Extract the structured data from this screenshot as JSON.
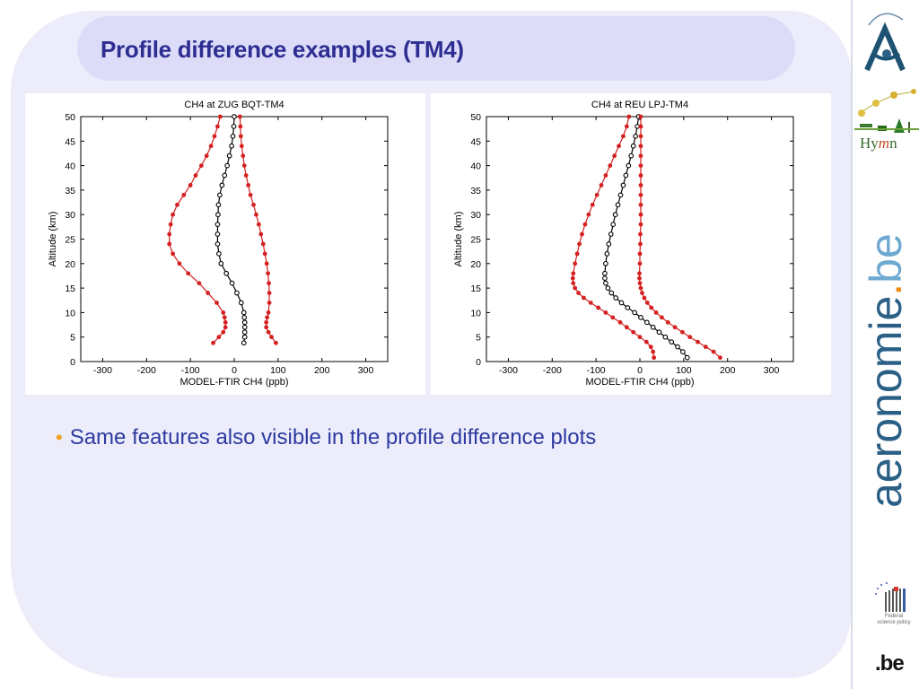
{
  "slide": {
    "title": "Profile difference examples (TM4)",
    "bullet": "Same features also visible in the profile difference plots"
  },
  "sidebar": {
    "brand_main": "aeronomie",
    "brand_dot": ".",
    "brand_tld": "be",
    "hymn_left": "Hy",
    "hymn_m": "m",
    "hymn_right": "n",
    "belspo_caption_1": "Federal",
    "belspo_caption_2": "science policy",
    "be_logo": ".be",
    "icons": [
      "bira-a-logo",
      "hymn-logo",
      "belspo-logo",
      "be-logo"
    ]
  },
  "colors": {
    "panel": "#ececfb",
    "title_bar": "#dcdcf8",
    "title_text": "#2d2d92",
    "bullet_text": "#2d3aa0",
    "bullet_dot": "#f0a020",
    "series_bounds": "#d42020",
    "series_center": "#000000"
  },
  "chart_data": [
    {
      "type": "line",
      "title": "CH4 at ZUG BQT-TM4",
      "xlabel": "MODEL-FTIR CH4 (ppb)",
      "ylabel": "Altitude (km)",
      "xlim": [
        -350,
        350
      ],
      "ylim": [
        0,
        50
      ],
      "xticks": [
        -300,
        -200,
        -100,
        0,
        100,
        200,
        300
      ],
      "yticks": [
        0,
        5,
        10,
        15,
        20,
        25,
        30,
        35,
        40,
        45,
        50
      ],
      "grid": false,
      "y": [
        3.8,
        5,
        6,
        7,
        8,
        9,
        10,
        12,
        14,
        16,
        18,
        20,
        22,
        24,
        26,
        28,
        30,
        32,
        34,
        36,
        38,
        40,
        42,
        44,
        46,
        48,
        50
      ],
      "series": [
        {
          "marker": "filled-dot",
          "color": "#d42020",
          "x": [
            -48,
            -35,
            -25,
            -20,
            -20,
            -22,
            -25,
            -40,
            -60,
            -80,
            -105,
            -125,
            -140,
            -148,
            -148,
            -145,
            -140,
            -130,
            -115,
            -100,
            -88,
            -75,
            -63,
            -53,
            -45,
            -38,
            -32
          ]
        },
        {
          "marker": "open-circle",
          "color": "#000000",
          "x": [
            22,
            24,
            24,
            24,
            24,
            23,
            22,
            16,
            6,
            -5,
            -18,
            -30,
            -35,
            -38,
            -38,
            -38,
            -37,
            -36,
            -33,
            -28,
            -22,
            -16,
            -11,
            -6,
            -3,
            -1,
            0
          ]
        },
        {
          "marker": "filled-dot",
          "color": "#d42020",
          "x": [
            95,
            85,
            78,
            73,
            73,
            75,
            78,
            80,
            80,
            79,
            77,
            74,
            70,
            66,
            61,
            56,
            50,
            44,
            37,
            32,
            27,
            23,
            20,
            17,
            15,
            14,
            13
          ]
        }
      ]
    },
    {
      "type": "line",
      "title": "CH4 at REU LPJ-TM4",
      "xlabel": "MODEL-FTIR CH4 (ppb)",
      "ylabel": "Altitude (km)",
      "xlim": [
        -350,
        350
      ],
      "ylim": [
        0,
        50
      ],
      "xticks": [
        -300,
        -200,
        -100,
        0,
        100,
        200,
        300
      ],
      "yticks": [
        0,
        5,
        10,
        15,
        20,
        25,
        30,
        35,
        40,
        45,
        50
      ],
      "grid": false,
      "y": [
        0.8,
        2,
        3,
        4,
        5,
        6,
        7,
        8,
        9,
        10,
        11,
        12,
        13,
        14,
        15,
        16,
        17,
        18,
        20,
        22,
        24,
        26,
        28,
        30,
        32,
        34,
        36,
        38,
        40,
        42,
        44,
        46,
        48,
        50
      ],
      "series": [
        {
          "marker": "filled-dot",
          "color": "#d42020",
          "x": [
            32,
            30,
            25,
            15,
            0,
            -15,
            -30,
            -45,
            -62,
            -78,
            -95,
            -112,
            -128,
            -140,
            -148,
            -152,
            -153,
            -152,
            -148,
            -143,
            -138,
            -132,
            -125,
            -117,
            -108,
            -98,
            -88,
            -78,
            -68,
            -58,
            -48,
            -38,
            -30,
            -25
          ]
        },
        {
          "marker": "open-circle",
          "color": "#000000",
          "x": [
            108,
            98,
            86,
            72,
            58,
            44,
            30,
            16,
            2,
            -12,
            -28,
            -42,
            -55,
            -65,
            -73,
            -78,
            -80,
            -80,
            -78,
            -75,
            -71,
            -66,
            -61,
            -56,
            -50,
            -44,
            -38,
            -32,
            -26,
            -20,
            -15,
            -10,
            -6,
            -3
          ]
        },
        {
          "marker": "filled-dot",
          "color": "#d42020",
          "x": [
            183,
            168,
            150,
            132,
            114,
            97,
            80,
            64,
            50,
            37,
            26,
            17,
            10,
            5,
            2,
            0,
            -1,
            -1,
            0,
            0,
            1,
            1,
            2,
            2,
            2,
            2,
            2,
            2,
            2,
            2,
            2,
            2,
            2,
            2
          ]
        }
      ]
    }
  ]
}
